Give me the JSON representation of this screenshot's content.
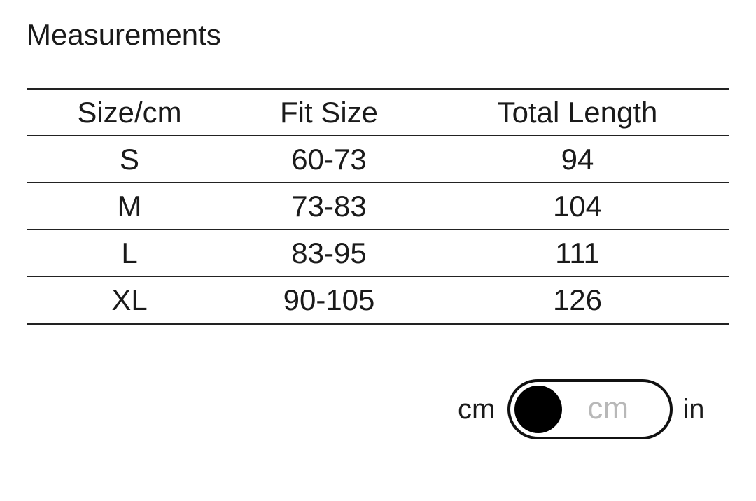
{
  "title": "Measurements",
  "table": {
    "headers": [
      "Size/cm",
      "Fit Size",
      "Total Length"
    ],
    "rows": [
      [
        "S",
        "60-73",
        "94"
      ],
      [
        "M",
        "73-83",
        "104"
      ],
      [
        "L",
        "83-95",
        "111"
      ],
      [
        "XL",
        "90-105",
        "126"
      ]
    ]
  },
  "unit_toggle": {
    "left_label": "cm",
    "right_label": "in",
    "current": "cm",
    "knob_position": "left"
  }
}
